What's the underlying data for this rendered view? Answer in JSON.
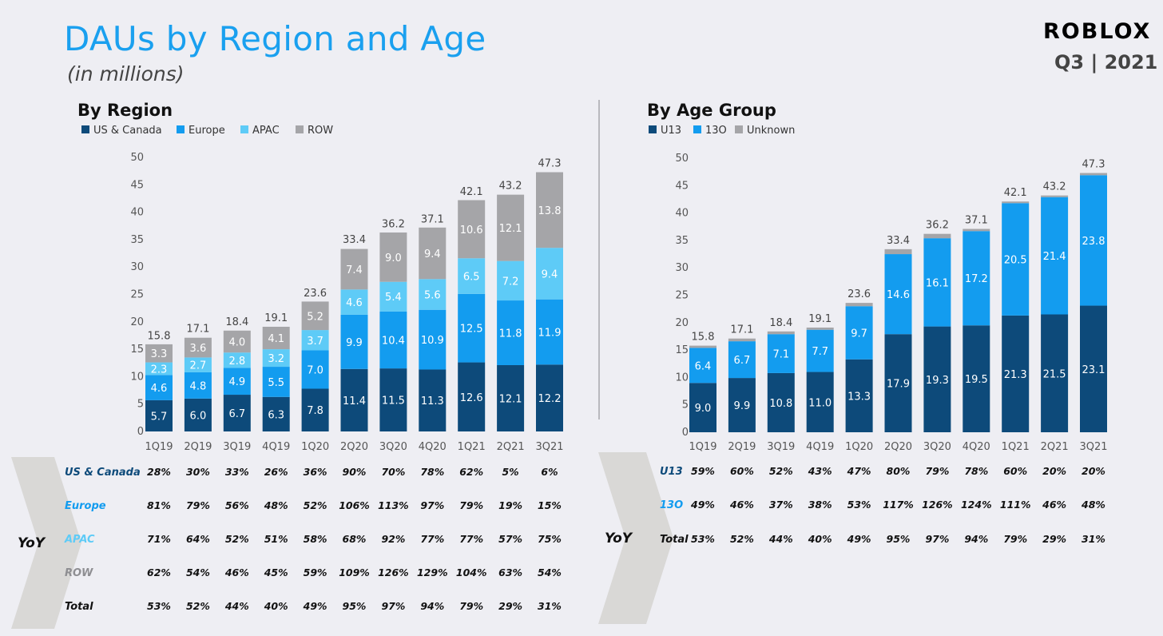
{
  "header": {
    "title": "DAUs by Region and Age",
    "subtitle": "(in millions)",
    "logo": "ROBLOX",
    "period": "Q3 | 2021"
  },
  "colors": {
    "us_canada": "#0d4a7a",
    "europe": "#139cef",
    "apac": "#5ecbf7",
    "row": "#a5a5a8",
    "u13": "#0d4a7a",
    "o13": "#139cef",
    "unknown": "#a5a5a8",
    "yoy_arrow": "#d9d8d6",
    "title_blue": "#1aa0ef"
  },
  "chart_data": [
    {
      "type": "bar",
      "stacked": true,
      "title": "By Region",
      "categories": [
        "1Q19",
        "2Q19",
        "3Q19",
        "4Q19",
        "1Q20",
        "2Q20",
        "3Q20",
        "4Q20",
        "1Q21",
        "2Q21",
        "3Q21"
      ],
      "ylim": [
        0,
        50
      ],
      "yticks": [
        0,
        5,
        10,
        15,
        20,
        25,
        30,
        35,
        40,
        45,
        50
      ],
      "legend_position": "top-left",
      "series": [
        {
          "name": "US & Canada",
          "values": [
            5.7,
            6.0,
            6.7,
            6.3,
            7.8,
            11.4,
            11.5,
            11.3,
            12.6,
            12.1,
            12.2
          ],
          "labels": [
            "5.7",
            "6.0",
            "6.7",
            "6.3",
            "7.8",
            "11.4",
            "11.5",
            "11.3",
            "12.6",
            "12.1",
            "12.2"
          ]
        },
        {
          "name": "Europe",
          "values": [
            4.6,
            4.8,
            4.9,
            5.5,
            7.0,
            9.9,
            10.4,
            10.9,
            12.5,
            11.8,
            11.9
          ],
          "labels": [
            "4.6",
            "4.8",
            "4.9",
            "5.5",
            "7.0",
            "9.9",
            "10.4",
            "10.9",
            "12.5",
            "11.8",
            "11.9"
          ]
        },
        {
          "name": "APAC",
          "values": [
            2.3,
            2.7,
            2.8,
            3.2,
            3.7,
            4.6,
            5.4,
            5.6,
            6.5,
            7.2,
            9.4
          ],
          "labels": [
            "2.3",
            "2.7",
            "2.8",
            "3.2",
            "3.7",
            "4.6",
            "5.4",
            "5.6",
            "6.5",
            "7.2",
            "9.4"
          ]
        },
        {
          "name": "ROW",
          "values": [
            3.3,
            3.6,
            4.0,
            4.1,
            5.2,
            7.4,
            9.0,
            9.4,
            10.6,
            12.1,
            13.8
          ],
          "labels": [
            "3.3",
            "3.6",
            "4.0",
            "4.1",
            "5.2",
            "7.4",
            "9.0",
            "9.4",
            "10.6",
            "12.1",
            "13.8"
          ]
        }
      ],
      "totals": [
        15.8,
        17.1,
        18.4,
        19.1,
        23.6,
        33.4,
        36.2,
        37.1,
        42.1,
        43.2,
        47.3
      ],
      "total_labels": [
        "15.8",
        "17.1",
        "18.4",
        "19.1",
        "23.6",
        "33.4",
        "36.2",
        "37.1",
        "42.1",
        "43.2",
        "47.3"
      ],
      "yoy": {
        "label": "YoY",
        "rows": [
          {
            "name": "US & Canada",
            "values": [
              "28%",
              "30%",
              "33%",
              "26%",
              "36%",
              "90%",
              "70%",
              "78%",
              "62%",
              "5%",
              "6%"
            ]
          },
          {
            "name": "Europe",
            "values": [
              "81%",
              "79%",
              "56%",
              "48%",
              "52%",
              "106%",
              "113%",
              "97%",
              "79%",
              "19%",
              "15%"
            ]
          },
          {
            "name": "APAC",
            "values": [
              "71%",
              "64%",
              "52%",
              "51%",
              "58%",
              "68%",
              "92%",
              "77%",
              "77%",
              "57%",
              "75%"
            ]
          },
          {
            "name": "ROW",
            "values": [
              "62%",
              "54%",
              "46%",
              "45%",
              "59%",
              "109%",
              "126%",
              "129%",
              "104%",
              "63%",
              "54%"
            ]
          },
          {
            "name": "Total",
            "values": [
              "53%",
              "52%",
              "44%",
              "40%",
              "49%",
              "95%",
              "97%",
              "94%",
              "79%",
              "29%",
              "31%"
            ]
          }
        ]
      }
    },
    {
      "type": "bar",
      "stacked": true,
      "title": "By Age Group",
      "categories": [
        "1Q19",
        "2Q19",
        "3Q19",
        "4Q19",
        "1Q20",
        "2Q20",
        "3Q20",
        "4Q20",
        "1Q21",
        "2Q21",
        "3Q21"
      ],
      "ylim": [
        0,
        50
      ],
      "yticks": [
        0,
        5,
        10,
        15,
        20,
        25,
        30,
        35,
        40,
        45,
        50
      ],
      "legend_position": "top-left",
      "series": [
        {
          "name": "U13",
          "values": [
            9.0,
            9.9,
            10.8,
            11.0,
            13.3,
            17.9,
            19.3,
            19.5,
            21.3,
            21.5,
            23.1
          ],
          "labels": [
            "9.0",
            "9.9",
            "10.8",
            "11.0",
            "13.3",
            "17.9",
            "19.3",
            "19.5",
            "21.3",
            "21.5",
            "23.1"
          ]
        },
        {
          "name": "13O",
          "values": [
            6.4,
            6.7,
            7.1,
            7.7,
            9.7,
            14.6,
            16.1,
            17.2,
            20.5,
            21.4,
            23.8
          ],
          "labels": [
            "6.4",
            "6.7",
            "7.1",
            "7.7",
            "9.7",
            "14.6",
            "16.1",
            "17.2",
            "20.5",
            "21.4",
            "23.8"
          ]
        },
        {
          "name": "Unknown",
          "values": [
            0.4,
            0.5,
            0.5,
            0.4,
            0.6,
            0.9,
            0.8,
            0.4,
            0.3,
            0.3,
            0.4
          ],
          "labels": [
            "",
            "",
            "",
            "",
            "",
            "",
            "",
            "",
            "",
            "",
            ""
          ]
        }
      ],
      "totals": [
        15.8,
        17.1,
        18.4,
        19.1,
        23.6,
        33.4,
        36.2,
        37.1,
        42.1,
        43.2,
        47.3
      ],
      "total_labels": [
        "15.8",
        "17.1",
        "18.4",
        "19.1",
        "23.6",
        "33.4",
        "36.2",
        "37.1",
        "42.1",
        "43.2",
        "47.3"
      ],
      "yoy": {
        "label": "YoY",
        "rows": [
          {
            "name": "U13",
            "values": [
              "59%",
              "60%",
              "52%",
              "43%",
              "47%",
              "80%",
              "79%",
              "78%",
              "60%",
              "20%",
              "20%"
            ]
          },
          {
            "name": "13O",
            "values": [
              "49%",
              "46%",
              "37%",
              "38%",
              "53%",
              "117%",
              "126%",
              "124%",
              "111%",
              "46%",
              "48%"
            ]
          },
          {
            "name": "Total",
            "values": [
              "53%",
              "52%",
              "44%",
              "40%",
              "49%",
              "95%",
              "97%",
              "94%",
              "79%",
              "29%",
              "31%"
            ]
          }
        ]
      }
    }
  ]
}
